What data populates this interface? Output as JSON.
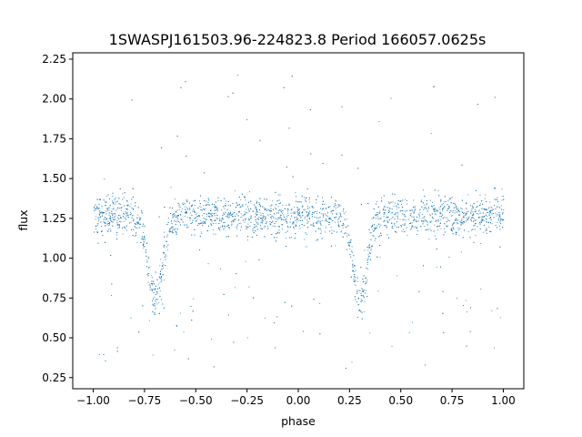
{
  "chart_data": {
    "type": "scatter",
    "title": "1SWASPJ161503.96-224823.8 Period 166057.0625s",
    "xlabel": "phase",
    "ylabel": "flux",
    "xlim": [
      -1.1,
      1.1
    ],
    "ylim": [
      0.18,
      2.29
    ],
    "x_ticks": [
      -1.0,
      -0.75,
      -0.5,
      -0.25,
      0.0,
      0.25,
      0.5,
      0.75,
      1.0
    ],
    "x_tick_labels": [
      "−1.00",
      "−0.75",
      "−0.50",
      "−0.25",
      "0.00",
      "0.25",
      "0.50",
      "0.75",
      "1.00"
    ],
    "y_ticks": [
      0.25,
      0.5,
      0.75,
      1.0,
      1.25,
      1.5,
      1.75,
      2.0,
      2.25
    ],
    "y_tick_labels": [
      "0.25",
      "0.50",
      "0.75",
      "1.00",
      "1.25",
      "1.50",
      "1.75",
      "2.00",
      "2.25"
    ],
    "grid": false,
    "point_color": "#1f77b4",
    "series": [
      {
        "phase_range": [
          -1.0,
          1.0
        ],
        "baseline_flux": 1.27,
        "typical_scatter": 0.1,
        "dip_phases": [
          -0.7,
          0.3
        ],
        "dip_min_flux": 0.75,
        "outlier_flux_range": [
          0.3,
          2.2
        ]
      }
    ]
  }
}
